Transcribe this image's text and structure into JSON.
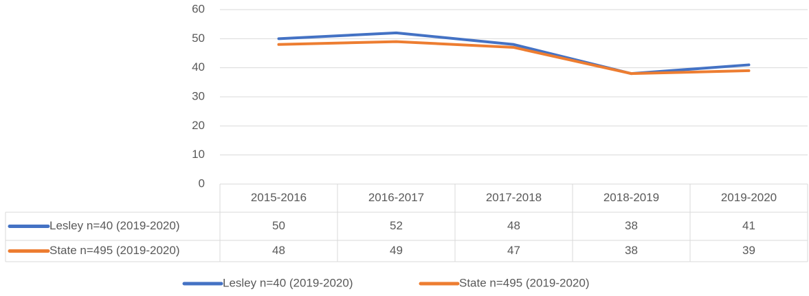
{
  "chart_data": {
    "type": "line",
    "categories": [
      "2015-2016",
      "2016-2017",
      "2017-2018",
      "2018-2019",
      "2019-2020"
    ],
    "series": [
      {
        "name": "Lesley n=40 (2019-2020)",
        "color": "#4472c4",
        "values": [
          50,
          52,
          48,
          38,
          41
        ]
      },
      {
        "name": "State n=495 (2019-2020)",
        "color": "#ed7d31",
        "values": [
          48,
          49,
          47,
          38,
          39
        ]
      }
    ],
    "ylim": [
      0,
      60
    ],
    "yticks": [
      0,
      10,
      20,
      30,
      40,
      50,
      60
    ],
    "grid": true,
    "data_table": true,
    "legend": "bottom"
  }
}
